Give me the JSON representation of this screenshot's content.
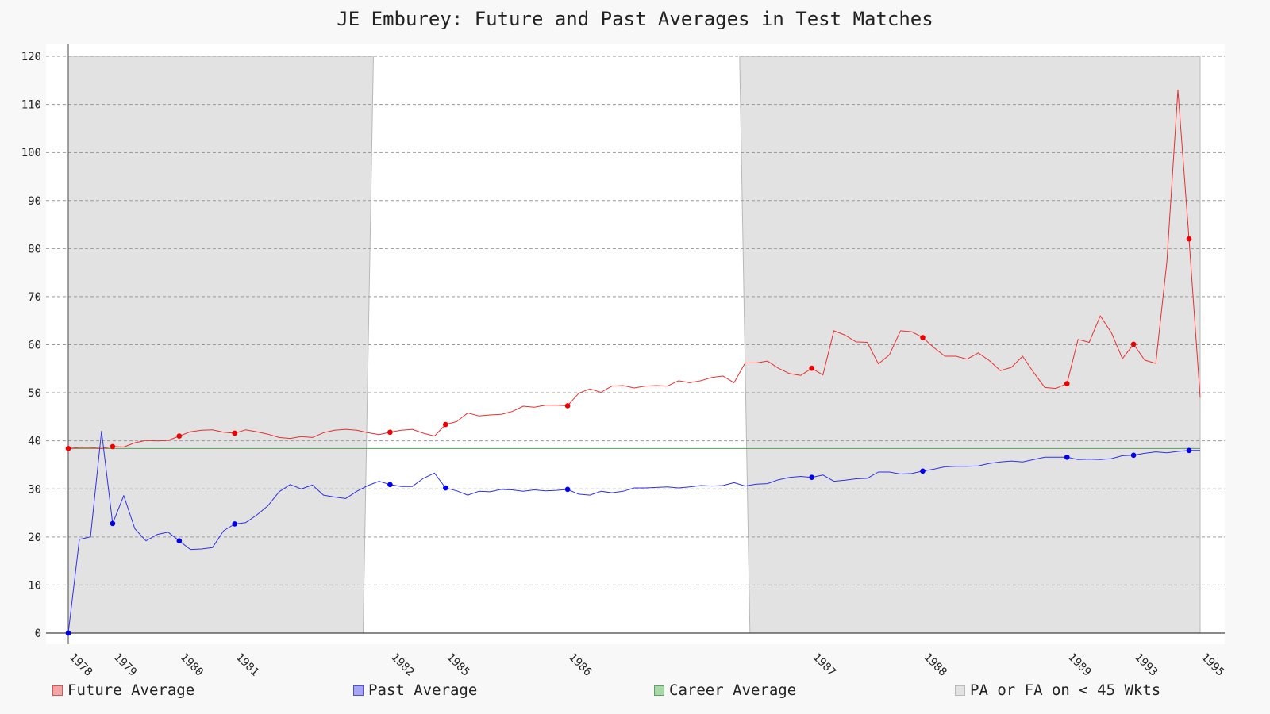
{
  "chart_data": {
    "type": "line",
    "title": "JE Emburey: Future and Past Averages in Test Matches",
    "xlabel": "",
    "ylabel": "",
    "ylim": [
      0,
      120
    ],
    "y_ticks": [
      0,
      10,
      20,
      30,
      40,
      50,
      60,
      70,
      80,
      90,
      100,
      110,
      120
    ],
    "x_tick_labels": [
      {
        "label": "1978",
        "index": 0
      },
      {
        "label": "1979",
        "index": 4
      },
      {
        "label": "1980",
        "index": 10
      },
      {
        "label": "1981",
        "index": 15
      },
      {
        "label": "1982",
        "index": 29
      },
      {
        "label": "1985",
        "index": 34
      },
      {
        "label": "1986",
        "index": 45
      },
      {
        "label": "1987",
        "index": 67
      },
      {
        "label": "1988",
        "index": 77
      },
      {
        "label": "1989",
        "index": 90
      },
      {
        "label": "1993",
        "index": 96
      },
      {
        "label": "1995",
        "index": 102
      }
    ],
    "marker_indices": [
      0,
      4,
      10,
      15,
      29,
      34,
      45,
      67,
      77,
      90,
      96,
      101
    ],
    "series": [
      {
        "name": "Future Average",
        "color": "#e83030",
        "values": [
          38.4,
          38.6,
          38.6,
          38.4,
          38.8,
          38.7,
          39.6,
          40.1,
          40.0,
          40.1,
          41.0,
          41.9,
          42.2,
          42.3,
          41.8,
          41.6,
          42.3,
          41.9,
          41.4,
          40.7,
          40.5,
          40.9,
          40.7,
          41.7,
          42.2,
          42.4,
          42.2,
          41.7,
          41.3,
          41.8,
          42.2,
          42.4,
          41.6,
          41.0,
          43.4,
          44.0,
          45.8,
          45.2,
          45.4,
          45.5,
          46.1,
          47.2,
          47.0,
          47.4,
          47.4,
          47.3,
          49.9,
          50.8,
          50.1,
          51.4,
          51.5,
          51.0,
          51.4,
          51.5,
          51.4,
          52.5,
          52.1,
          52.5,
          53.2,
          53.5,
          52.1,
          56.2,
          56.2,
          56.6,
          55.1,
          54.0,
          53.6,
          55.1,
          53.7,
          62.9,
          62.0,
          60.6,
          60.5,
          56.0,
          57.9,
          62.9,
          62.7,
          61.5,
          59.4,
          57.6,
          57.6,
          57.0,
          58.3,
          56.7,
          54.6,
          55.3,
          57.6,
          54.2,
          51.1,
          50.9,
          51.9,
          61.1,
          60.5,
          66.0,
          62.5,
          57.1,
          60.1,
          56.8,
          56.1,
          77.3,
          113.0,
          82.0,
          49.0
        ]
      },
      {
        "name": "Past Average",
        "color": "#3030e8",
        "values": [
          0.0,
          19.5,
          20.0,
          42.0,
          22.8,
          28.6,
          21.7,
          19.2,
          20.5,
          21.0,
          19.2,
          17.4,
          17.5,
          17.8,
          21.3,
          22.7,
          23.0,
          24.6,
          26.5,
          29.4,
          30.9,
          30.0,
          30.8,
          28.7,
          28.3,
          28.0,
          29.5,
          30.7,
          31.6,
          30.9,
          30.5,
          30.5,
          32.2,
          33.3,
          30.2,
          29.6,
          28.7,
          29.5,
          29.4,
          29.9,
          29.8,
          29.5,
          29.8,
          29.6,
          29.7,
          29.9,
          28.9,
          28.7,
          29.5,
          29.2,
          29.5,
          30.2,
          30.2,
          30.3,
          30.4,
          30.2,
          30.4,
          30.7,
          30.6,
          30.7,
          31.3,
          30.6,
          31.0,
          31.1,
          31.9,
          32.4,
          32.6,
          32.4,
          32.9,
          31.6,
          31.8,
          32.1,
          32.2,
          33.5,
          33.5,
          33.1,
          33.2,
          33.7,
          34.1,
          34.6,
          34.7,
          34.7,
          34.8,
          35.3,
          35.6,
          35.8,
          35.6,
          36.1,
          36.6,
          36.6,
          36.6,
          36.1,
          36.2,
          36.1,
          36.3,
          36.9,
          37.0,
          37.4,
          37.7,
          37.5,
          37.8,
          38.0,
          38.0
        ]
      },
      {
        "name": "Career Average",
        "color": "#5aa05a",
        "value": 38.4
      }
    ],
    "shaded_regions": {
      "label": "PA or FA on < 45 Wkts",
      "color": "#e2e2e2",
      "regions": [
        [
          0,
          27.5
        ],
        [
          60.5,
          102
        ]
      ]
    },
    "legend_placement": "bottom",
    "grid": true
  },
  "legend": {
    "future": {
      "label": "Future Average",
      "fill": "#f4a6a6",
      "stroke": "#e05050"
    },
    "past": {
      "label": "Past Average",
      "fill": "#a6a6f4",
      "stroke": "#5050e0"
    },
    "career": {
      "label": "Career Average",
      "fill": "#a8d8a8",
      "stroke": "#60a060"
    },
    "lowwkts": {
      "label": "PA or FA on < 45 Wkts",
      "fill": "#e2e2e2",
      "stroke": "#bbbbbb"
    }
  }
}
